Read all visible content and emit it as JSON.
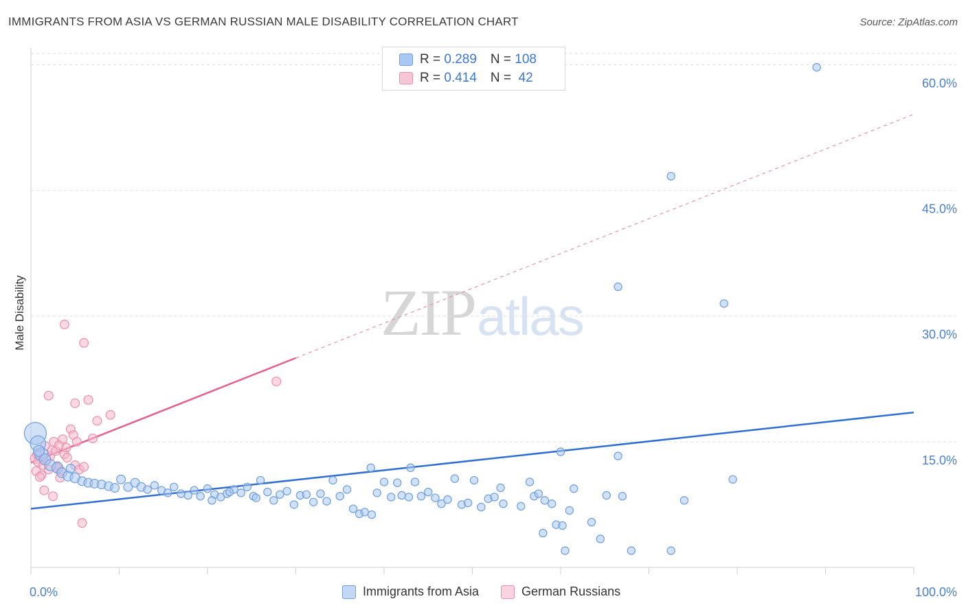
{
  "title": "IMMIGRANTS FROM ASIA VS GERMAN RUSSIAN MALE DISABILITY CORRELATION CHART",
  "source": "Source: ZipAtlas.com",
  "watermark": {
    "zip": "ZIP",
    "atlas": "atlas"
  },
  "colors": {
    "blue_fill": "#a9c8f3",
    "blue_stroke": "#6f9fe0",
    "blue_line": "#2f6fd0",
    "pink_fill": "#f7b8cb",
    "pink_stroke": "#ec8fac",
    "pink_line": "#e5608c",
    "grid": "#dedede",
    "tick_text": "#4a7fd0"
  },
  "legend": {
    "rows": [
      {
        "r_label": "R = ",
        "r_value": "0.289",
        "n_label": "N = ",
        "n_value": "108"
      },
      {
        "r_label": "R = ",
        "r_value": "0.414",
        "n_label": "N = ",
        "n_value": " 42"
      }
    ]
  },
  "bottom_legend": {
    "series1": "Immigrants from Asia",
    "series2": "German Russians"
  },
  "chart_data": {
    "type": "scatter",
    "title": "IMMIGRANTS FROM ASIA VS GERMAN RUSSIAN MALE DISABILITY CORRELATION CHART",
    "xlabel": "",
    "ylabel": "Male Disability",
    "xlim": [
      0,
      100
    ],
    "ylim": [
      0,
      62
    ],
    "x_tick_labels": {
      "left": "0.0%",
      "right": "100.0%"
    },
    "y_ticks": [
      {
        "value": 15,
        "label": "15.0%"
      },
      {
        "value": 30,
        "label": "30.0%"
      },
      {
        "value": 45,
        "label": "45.0%"
      },
      {
        "value": 60,
        "label": "60.0%"
      }
    ],
    "series": [
      {
        "name": "Immigrants from Asia",
        "R": 0.289,
        "N": 108,
        "trend": {
          "x0": 0,
          "y0": 7.0,
          "x1": 100,
          "y1": 18.5,
          "style": "solid"
        },
        "points": [
          [
            0.5,
            16.0,
            2.0
          ],
          [
            0.8,
            14.8,
            1.4
          ],
          [
            1.2,
            13.5,
            1.2
          ],
          [
            1.6,
            12.9,
            1.0
          ],
          [
            2.2,
            12.2,
            1.0
          ],
          [
            0.9,
            13.9,
            1.0
          ],
          [
            3.0,
            11.9,
            1.0
          ],
          [
            3.5,
            11.3,
            0.9
          ],
          [
            4.2,
            10.9,
            0.9
          ],
          [
            5.0,
            10.7,
            0.9
          ],
          [
            5.8,
            10.3,
            0.8
          ],
          [
            6.5,
            10.1,
            0.8
          ],
          [
            7.2,
            10.0,
            0.8
          ],
          [
            8.0,
            9.9,
            0.8
          ],
          [
            8.8,
            9.7,
            0.8
          ],
          [
            9.5,
            9.5,
            0.8
          ],
          [
            10.2,
            10.5,
            0.8
          ],
          [
            11.0,
            9.6,
            0.8
          ],
          [
            11.8,
            10.1,
            0.8
          ],
          [
            12.5,
            9.6,
            0.8
          ],
          [
            13.2,
            9.3,
            0.7
          ],
          [
            14.0,
            9.8,
            0.7
          ],
          [
            14.8,
            9.2,
            0.7
          ],
          [
            15.5,
            8.9,
            0.7
          ],
          [
            16.2,
            9.6,
            0.7
          ],
          [
            17.0,
            8.8,
            0.7
          ],
          [
            17.8,
            8.6,
            0.7
          ],
          [
            18.5,
            9.2,
            0.7
          ],
          [
            19.2,
            8.5,
            0.7
          ],
          [
            20.0,
            9.4,
            0.7
          ],
          [
            20.8,
            8.7,
            0.7
          ],
          [
            21.5,
            8.4,
            0.7
          ],
          [
            22.2,
            8.8,
            0.7
          ],
          [
            23.0,
            9.3,
            0.7
          ],
          [
            23.8,
            8.9,
            0.7
          ],
          [
            24.5,
            9.6,
            0.7
          ],
          [
            25.2,
            8.5,
            0.7
          ],
          [
            26.0,
            10.4,
            0.7
          ],
          [
            26.8,
            9.0,
            0.7
          ],
          [
            27.5,
            8.0,
            0.7
          ],
          [
            28.2,
            8.7,
            0.7
          ],
          [
            29.0,
            9.1,
            0.7
          ],
          [
            29.8,
            7.5,
            0.7
          ],
          [
            30.5,
            8.6,
            0.7
          ],
          [
            31.2,
            8.7,
            0.7
          ],
          [
            32.0,
            7.8,
            0.7
          ],
          [
            32.8,
            8.8,
            0.7
          ],
          [
            33.5,
            7.9,
            0.7
          ],
          [
            34.2,
            10.4,
            0.7
          ],
          [
            35.0,
            8.5,
            0.7
          ],
          [
            35.8,
            9.3,
            0.7
          ],
          [
            36.5,
            7.0,
            0.7
          ],
          [
            37.2,
            6.4,
            0.7
          ],
          [
            37.8,
            6.6,
            0.7
          ],
          [
            38.6,
            6.3,
            0.7
          ],
          [
            39.2,
            8.9,
            0.7
          ],
          [
            40.0,
            10.2,
            0.7
          ],
          [
            40.8,
            8.4,
            0.7
          ],
          [
            41.5,
            10.1,
            0.7
          ],
          [
            42.0,
            8.6,
            0.7
          ],
          [
            42.8,
            8.4,
            0.7
          ],
          [
            43.5,
            10.2,
            0.7
          ],
          [
            44.2,
            8.5,
            0.7
          ],
          [
            45.0,
            9.0,
            0.7
          ],
          [
            45.8,
            8.3,
            0.7
          ],
          [
            46.5,
            7.6,
            0.7
          ],
          [
            47.2,
            8.1,
            0.7
          ],
          [
            48.0,
            10.6,
            0.7
          ],
          [
            48.8,
            7.5,
            0.7
          ],
          [
            49.5,
            7.7,
            0.7
          ],
          [
            50.2,
            10.4,
            0.7
          ],
          [
            51.0,
            7.2,
            0.7
          ],
          [
            51.8,
            8.2,
            0.7
          ],
          [
            52.5,
            8.4,
            0.7
          ],
          [
            53.2,
            9.5,
            0.7
          ],
          [
            43.0,
            11.9,
            0.7
          ],
          [
            57.0,
            8.5,
            0.7
          ],
          [
            58.2,
            8.0,
            0.7
          ],
          [
            59.0,
            7.6,
            0.7
          ],
          [
            58.0,
            4.1,
            0.7
          ],
          [
            59.5,
            5.1,
            0.7
          ],
          [
            60.2,
            5.0,
            0.7
          ],
          [
            61.0,
            6.8,
            0.7
          ],
          [
            63.5,
            5.4,
            0.7
          ],
          [
            64.5,
            3.4,
            0.7
          ],
          [
            65.2,
            8.6,
            0.7
          ],
          [
            66.5,
            13.3,
            0.7
          ],
          [
            67.0,
            8.5,
            0.7
          ],
          [
            68.0,
            2.0,
            0.7
          ],
          [
            72.5,
            2.0,
            0.7
          ],
          [
            74.0,
            8.0,
            0.7
          ],
          [
            79.5,
            10.5,
            0.7
          ],
          [
            60.0,
            13.8,
            0.7
          ],
          [
            66.5,
            33.5,
            0.7
          ],
          [
            72.5,
            46.7,
            0.7
          ],
          [
            89.0,
            59.7,
            0.7
          ],
          [
            78.5,
            31.5,
            0.7
          ],
          [
            53.5,
            7.6,
            0.7
          ],
          [
            38.5,
            11.9,
            0.7
          ],
          [
            25.5,
            8.3,
            0.7
          ],
          [
            20.5,
            8.0,
            0.7
          ],
          [
            22.5,
            9.0,
            0.7
          ],
          [
            55.5,
            7.3,
            0.7
          ],
          [
            56.5,
            10.2,
            0.7
          ],
          [
            57.5,
            8.8,
            0.7
          ],
          [
            61.5,
            9.4,
            0.7
          ],
          [
            60.5,
            2.0,
            0.7
          ],
          [
            4.5,
            11.8,
            0.8
          ]
        ]
      },
      {
        "name": "German Russians",
        "R": 0.414,
        "N": 42,
        "trend": {
          "x0": 0,
          "y0": 12.5,
          "x1": 30,
          "y1": 25.0,
          "style": "solid",
          "extension": {
            "x1": 100,
            "y1": 54.1,
            "style": "dashed"
          }
        },
        "points": [
          [
            0.5,
            13.0,
            0.9
          ],
          [
            0.6,
            11.5,
            0.8
          ],
          [
            0.8,
            12.6,
            0.8
          ],
          [
            1.0,
            13.7,
            0.8
          ],
          [
            1.2,
            11.0,
            0.8
          ],
          [
            1.4,
            12.2,
            0.8
          ],
          [
            1.6,
            14.5,
            0.8
          ],
          [
            1.8,
            12.8,
            0.8
          ],
          [
            2.0,
            11.7,
            0.8
          ],
          [
            2.2,
            13.3,
            0.8
          ],
          [
            2.4,
            14.0,
            0.8
          ],
          [
            2.6,
            15.0,
            0.8
          ],
          [
            2.8,
            13.9,
            0.8
          ],
          [
            3.0,
            12.1,
            0.8
          ],
          [
            3.2,
            14.6,
            0.8
          ],
          [
            3.4,
            11.5,
            0.8
          ],
          [
            3.6,
            15.3,
            0.8
          ],
          [
            3.8,
            13.5,
            0.8
          ],
          [
            4.0,
            14.3,
            0.8
          ],
          [
            4.5,
            16.5,
            0.8
          ],
          [
            4.8,
            15.8,
            0.8
          ],
          [
            5.0,
            12.2,
            0.8
          ],
          [
            5.5,
            11.7,
            0.8
          ],
          [
            5.2,
            15.0,
            0.8
          ],
          [
            6.0,
            12.0,
            0.8
          ],
          [
            1.5,
            9.2,
            0.8
          ],
          [
            2.5,
            8.5,
            0.8
          ],
          [
            5.8,
            5.3,
            0.8
          ],
          [
            3.8,
            29.0,
            0.8
          ],
          [
            6.0,
            26.8,
            0.8
          ],
          [
            2.0,
            20.5,
            0.8
          ],
          [
            5.0,
            19.6,
            0.8
          ],
          [
            6.5,
            20.0,
            0.8
          ],
          [
            7.5,
            17.5,
            0.8
          ],
          [
            9.0,
            18.2,
            0.8
          ],
          [
            7.0,
            15.4,
            0.8
          ],
          [
            1.0,
            10.8,
            0.8
          ],
          [
            3.3,
            10.7,
            0.8
          ],
          [
            4.1,
            13.1,
            0.8
          ],
          [
            27.8,
            22.2,
            0.8
          ],
          [
            0.7,
            13.5,
            0.8
          ],
          [
            2.9,
            11.9,
            0.8
          ]
        ]
      }
    ]
  }
}
